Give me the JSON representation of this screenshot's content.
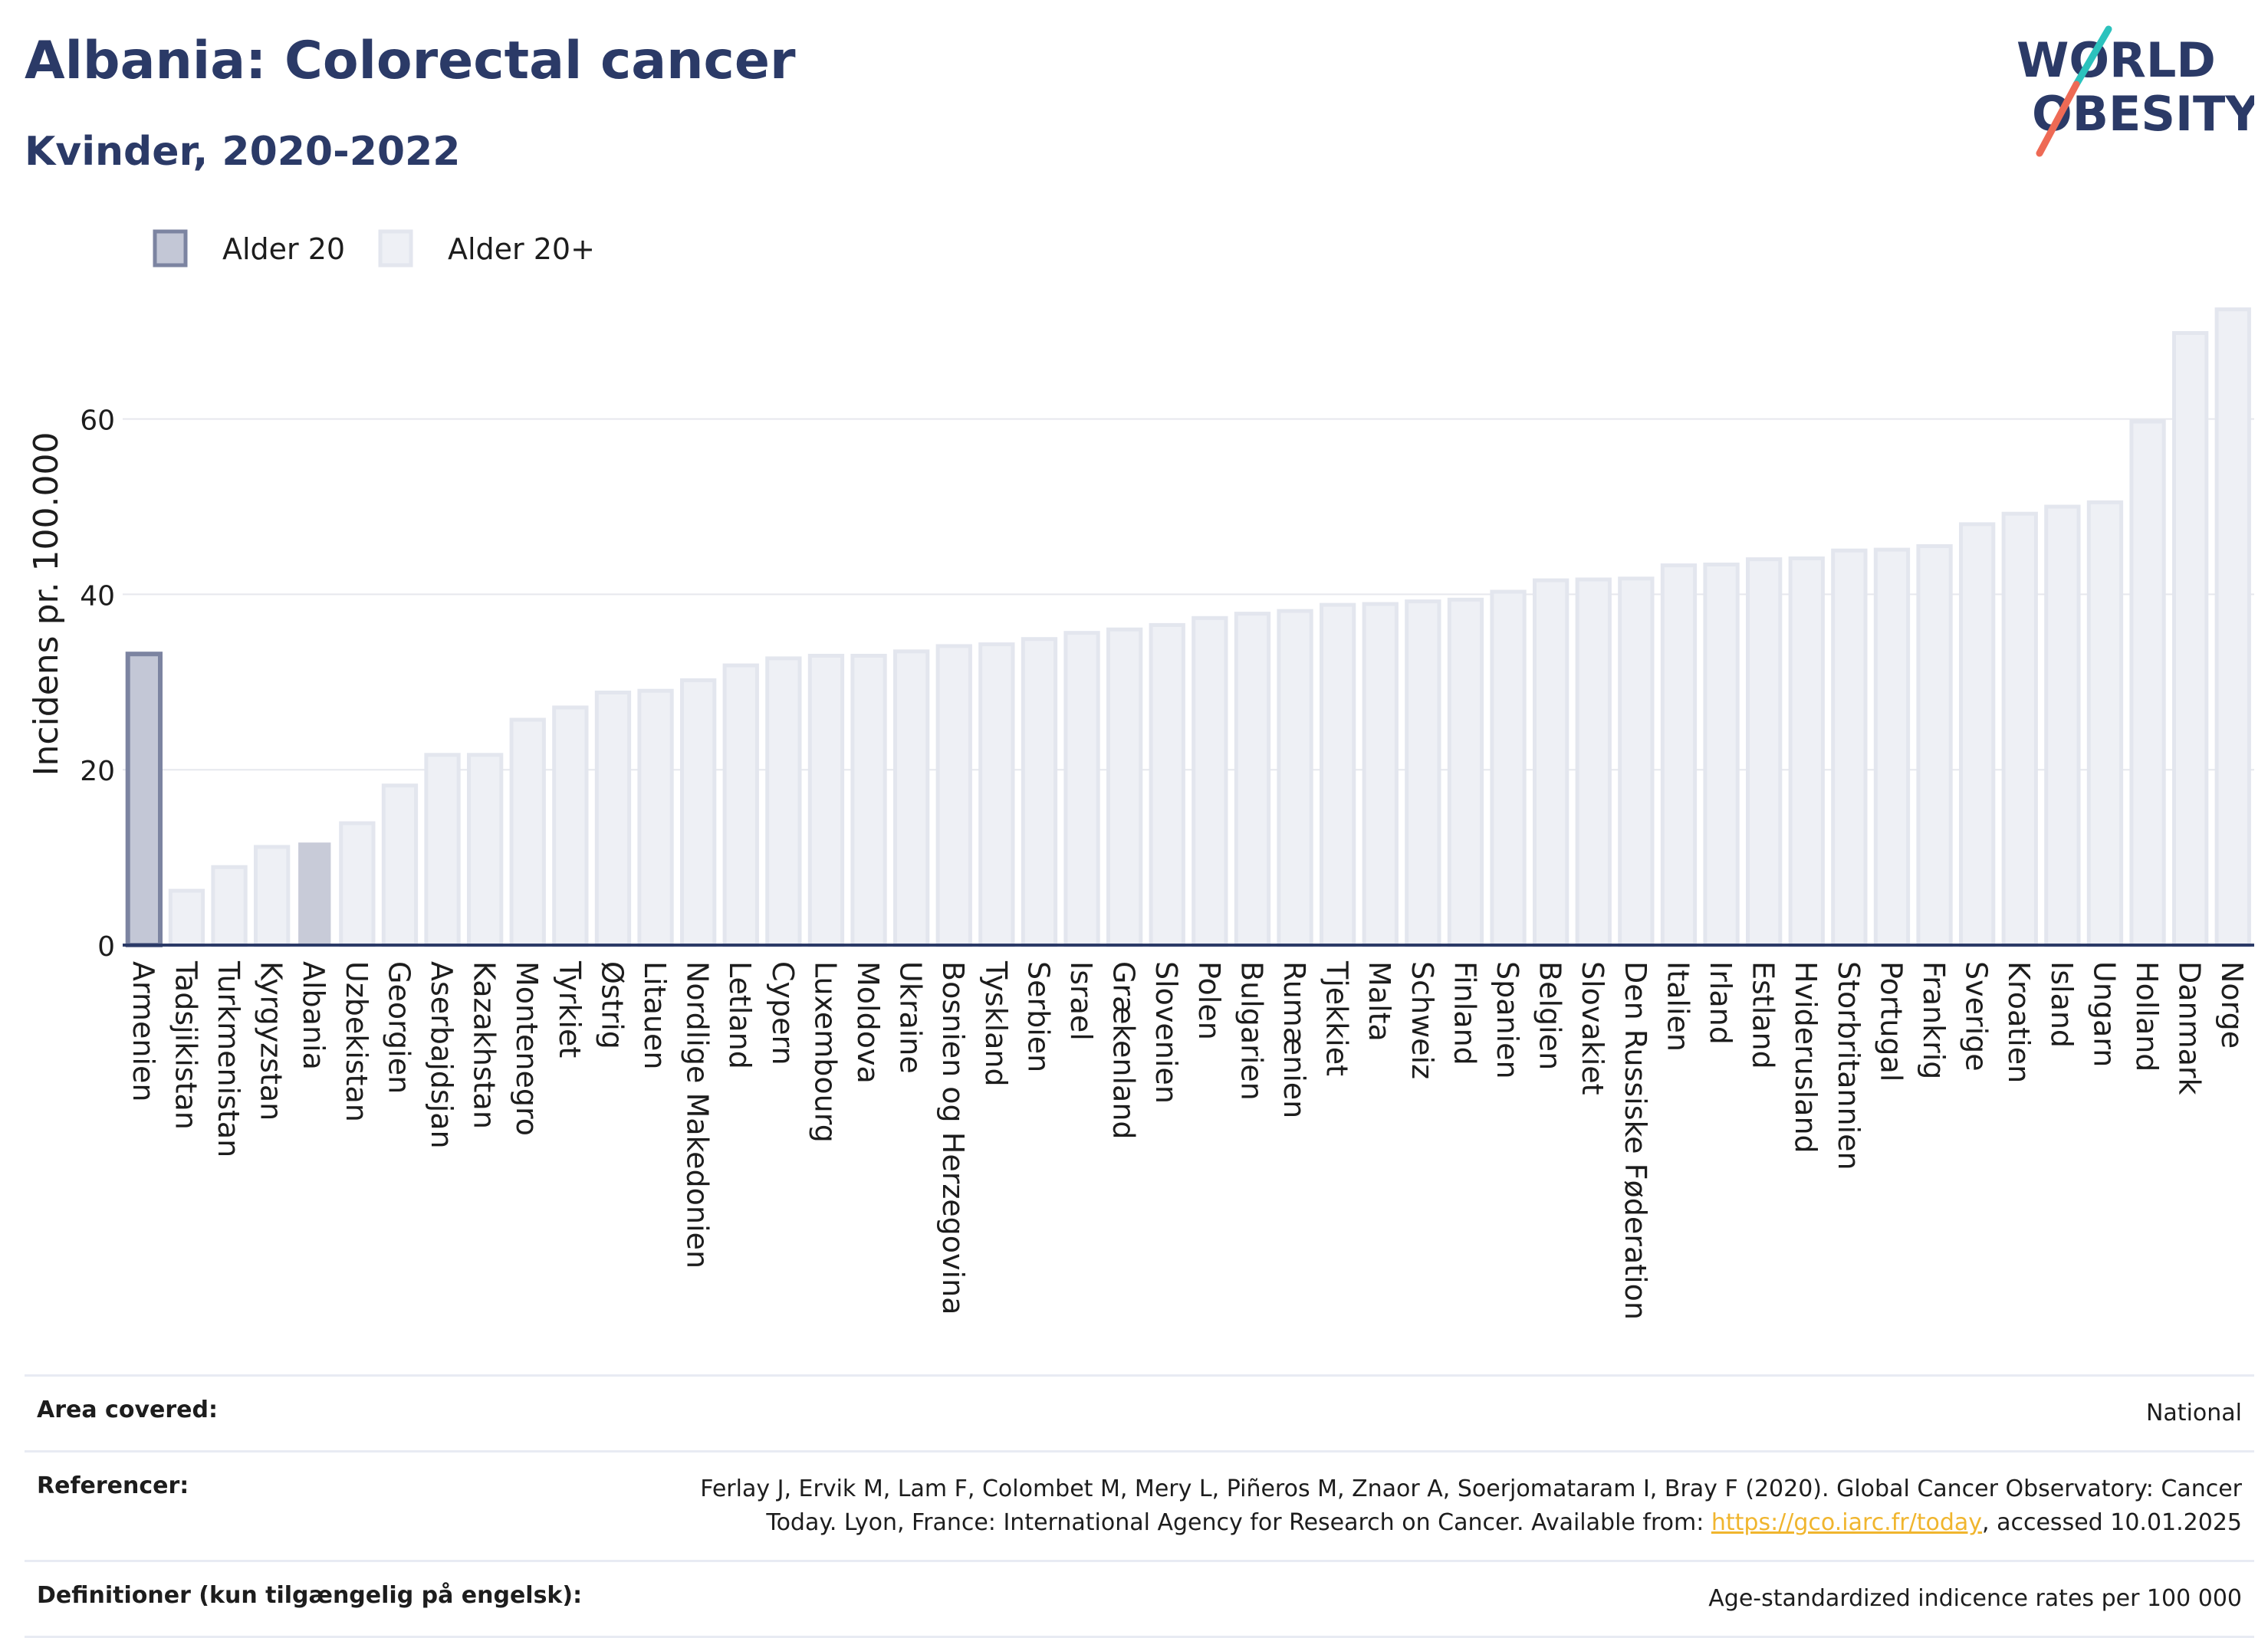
{
  "header": {
    "title": "Albania: Colorectal cancer",
    "subtitle": "Kvinder, 2020-2022"
  },
  "logo": {
    "line1": "WORLD",
    "line2": "OBESITY"
  },
  "legend": [
    {
      "label": "Alder 20",
      "color": "#c3c7d6",
      "stroke": "#7c84a1"
    },
    {
      "label": "Alder 20+",
      "color": "#eef0f5",
      "stroke": "#e3e6ee"
    }
  ],
  "chart_data": {
    "type": "bar",
    "ylabel": "Incidens pr. 100.000",
    "xlabel": "",
    "ylim": [
      0,
      75
    ],
    "yticks": [
      0,
      20,
      40,
      60
    ],
    "grid": true,
    "legend_position": "top-left",
    "categories": [
      "Armenien",
      "Tadsjikistan",
      "Turkmenistan",
      "Kyrgyzstan",
      "Albania",
      "Uzbekistan",
      "Georgien",
      "Aserbajdsjan",
      "Kazakhstan",
      "Montenegro",
      "Tyrkiet",
      "Østrig",
      "Litauen",
      "Nordlige Makedonien",
      "Letland",
      "Cypern",
      "Luxembourg",
      "Moldova",
      "Ukraine",
      "Bosnien og Herzegovina",
      "Tyskland",
      "Serbien",
      "Israel",
      "Grækenland",
      "Slovenien",
      "Polen",
      "Bulgarien",
      "Rumænien",
      "Tjekkiet",
      "Malta",
      "Schweiz",
      "Finland",
      "Spanien",
      "Belgien",
      "Slovakiet",
      "Den Russiske Føderation",
      "Italien",
      "Irland",
      "Estland",
      "Hviderusland",
      "Storbritannien",
      "Portugal",
      "Frankrig",
      "Sverige",
      "Kroatien",
      "Island",
      "Ungarn",
      "Holland",
      "Danmark",
      "Norge"
    ],
    "values": [
      33.2,
      6.2,
      8.9,
      11.2,
      11.7,
      13.9,
      18.2,
      21.7,
      21.7,
      25.7,
      27.1,
      28.8,
      29.0,
      30.2,
      31.9,
      32.7,
      33.0,
      33.0,
      33.5,
      34.1,
      34.3,
      34.9,
      35.6,
      36.0,
      36.5,
      37.3,
      37.8,
      38.1,
      38.8,
      38.9,
      39.2,
      39.4,
      40.3,
      41.6,
      41.7,
      41.8,
      43.3,
      43.4,
      44.0,
      44.1,
      45.0,
      45.1,
      45.5,
      48.0,
      49.2,
      50.0,
      50.5,
      59.7,
      69.8,
      72.5
    ],
    "series_type": [
      "Alder 20",
      "Alder 20+",
      "Alder 20+",
      "Alder 20+",
      "Alder 20",
      "Alder 20+",
      "Alder 20+",
      "Alder 20+",
      "Alder 20+",
      "Alder 20+",
      "Alder 20+",
      "Alder 20+",
      "Alder 20+",
      "Alder 20+",
      "Alder 20+",
      "Alder 20+",
      "Alder 20+",
      "Alder 20+",
      "Alder 20+",
      "Alder 20+",
      "Alder 20+",
      "Alder 20+",
      "Alder 20+",
      "Alder 20+",
      "Alder 20+",
      "Alder 20+",
      "Alder 20+",
      "Alder 20+",
      "Alder 20+",
      "Alder 20+",
      "Alder 20+",
      "Alder 20+",
      "Alder 20+",
      "Alder 20+",
      "Alder 20+",
      "Alder 20+",
      "Alder 20+",
      "Alder 20+",
      "Alder 20+",
      "Alder 20+",
      "Alder 20+",
      "Alder 20+",
      "Alder 20+",
      "Alder 20+",
      "Alder 20+",
      "Alder 20+",
      "Alder 20+",
      "Alder 20+",
      "Alder 20+",
      "Alder 20+"
    ],
    "highlight": "Albania",
    "colors": {
      "alder20_fill": "#c3c7d6",
      "alder20_stroke": "#7c84a1",
      "alder20plus_fill": "#eef0f5",
      "alder20plus_stroke": "#e3e6ee",
      "highlight_fill": "#c8cbd8"
    }
  },
  "footer": {
    "area_label": "Area covered:",
    "area_value": "National",
    "ref_label": "Referencer:",
    "ref_text_1": "Ferlay J, Ervik M, Lam F, Colombet M, Mery L, Piñeros M, Znaor A, Soerjomataram I, Bray F (2020). Global Cancer Observatory: Cancer Today. Lyon, France: International Agency for Research on Cancer. Available from: ",
    "ref_link": "https://gco.iarc.fr/today",
    "ref_text_2": ", accessed 10.01.2025",
    "def_label": "Definitioner (kun tilgængelig på engelsk):",
    "def_value": "Age-standardized indicence rates per 100 000"
  }
}
